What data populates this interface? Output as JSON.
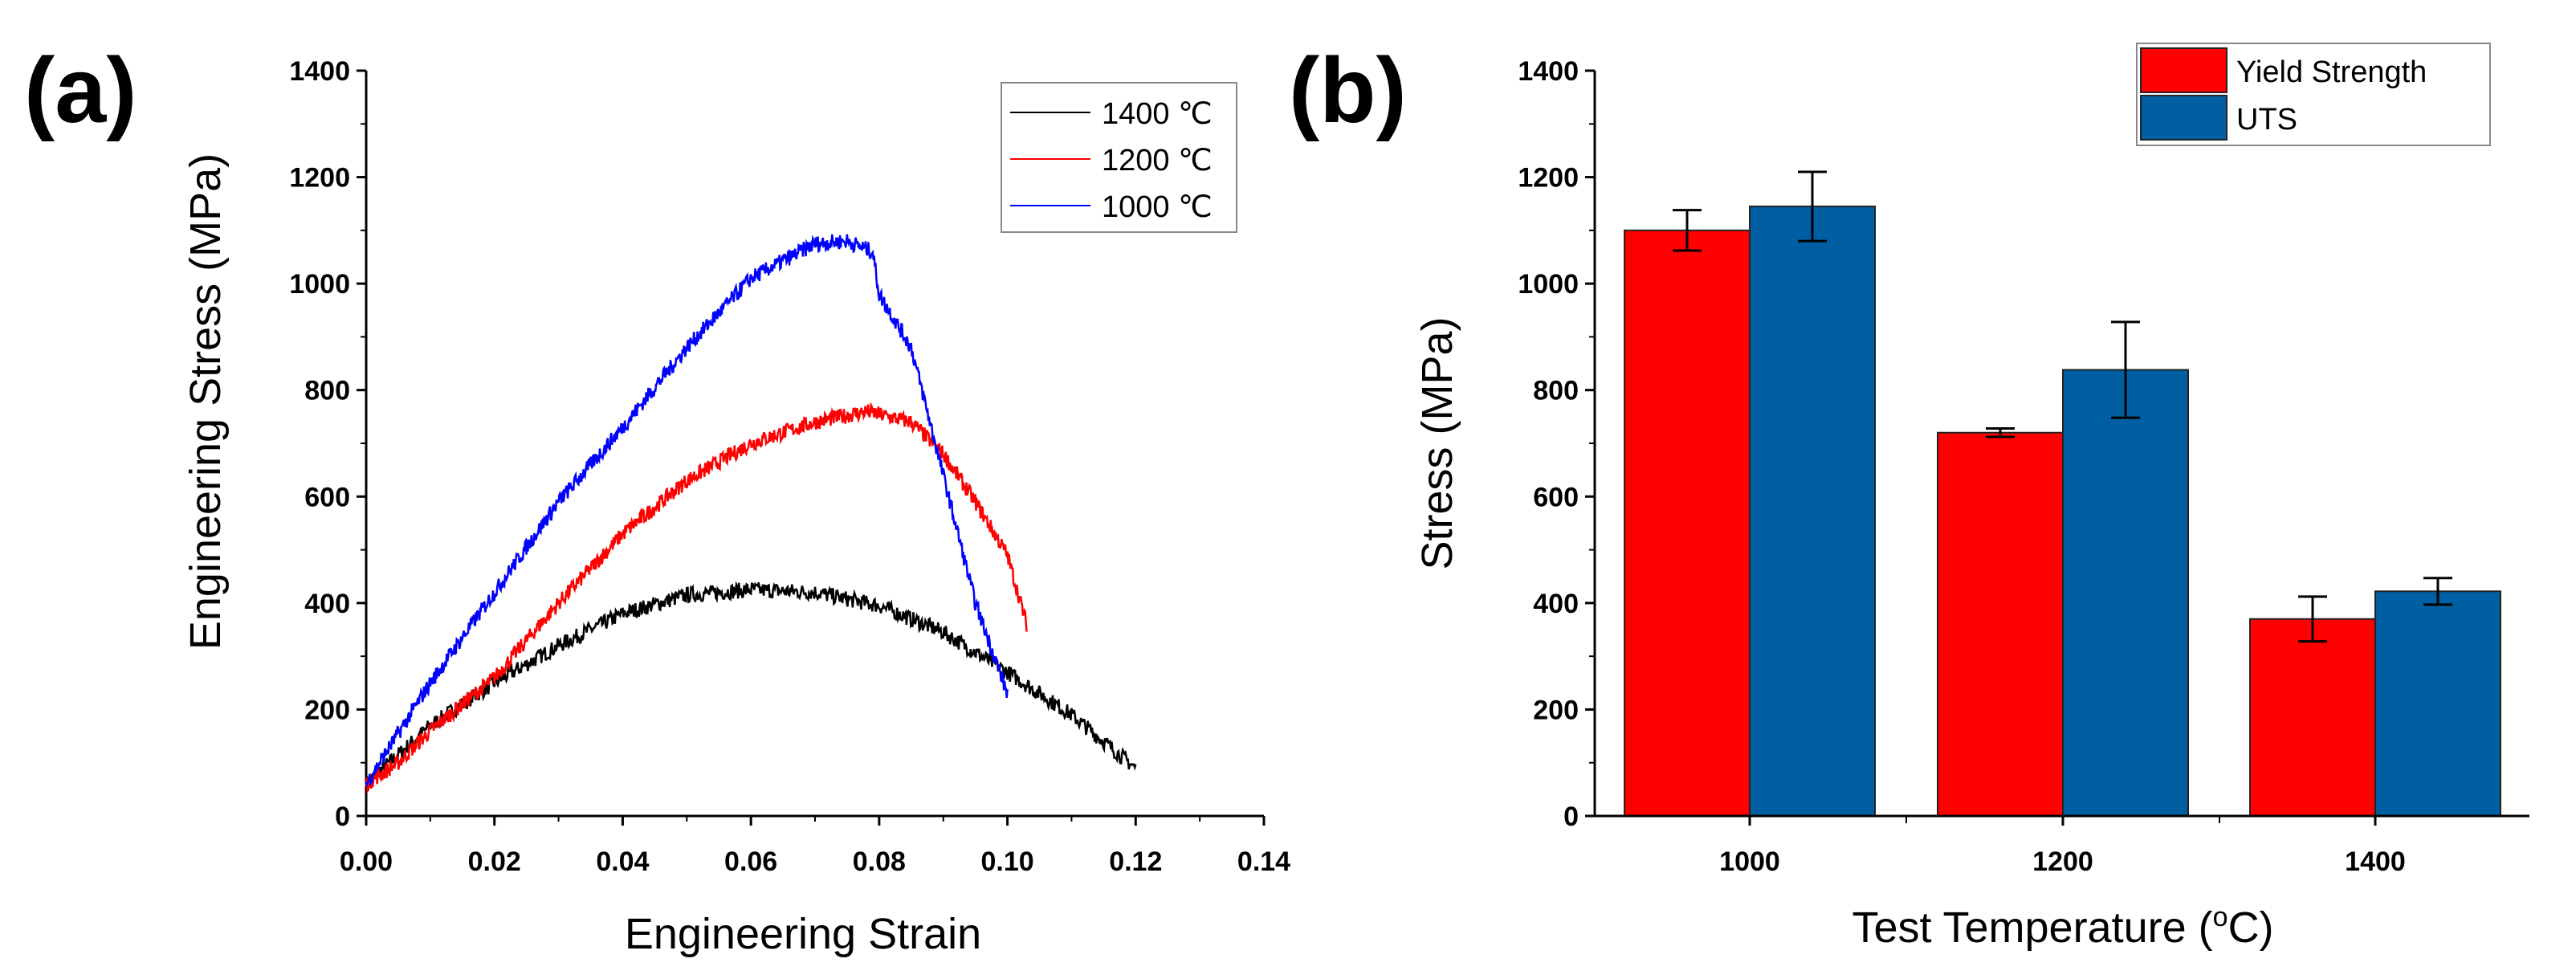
{
  "chart_data": [
    {
      "type": "line",
      "panel_label": "(a)",
      "xlabel": "Engineering Strain",
      "ylabel": "Engineering Stress (MPa)",
      "xlim": [
        0,
        0.14
      ],
      "ylim": [
        0,
        1400
      ],
      "xticks": [
        "0.00",
        "0.02",
        "0.04",
        "0.06",
        "0.08",
        "0.10",
        "0.12",
        "0.14"
      ],
      "yticks": [
        "0",
        "200",
        "400",
        "600",
        "800",
        "1000",
        "1200",
        "1400"
      ],
      "legend_position": "top-right",
      "grid": false,
      "series": [
        {
          "name": "1400 ℃",
          "color": "#000000",
          "x": [
            0,
            0.01,
            0.02,
            0.03,
            0.04,
            0.05,
            0.06,
            0.07,
            0.08,
            0.09,
            0.1,
            0.11,
            0.12
          ],
          "y": [
            60,
            170,
            250,
            320,
            380,
            415,
            425,
            420,
            395,
            345,
            270,
            190,
            90
          ]
        },
        {
          "name": "1200 ℃",
          "color": "#ff0000",
          "x": [
            0,
            0.005,
            0.01,
            0.02,
            0.03,
            0.04,
            0.05,
            0.06,
            0.07,
            0.078,
            0.085,
            0.09,
            0.095,
            0.1,
            0.103
          ],
          "y": [
            60,
            100,
            160,
            260,
            400,
            530,
            630,
            700,
            740,
            760,
            740,
            680,
            590,
            490,
            360
          ]
        },
        {
          "name": "1000 ℃",
          "color": "#0000ff",
          "x": [
            0,
            0.01,
            0.02,
            0.03,
            0.04,
            0.05,
            0.06,
            0.07,
            0.075,
            0.079,
            0.08,
            0.085,
            0.09,
            0.095,
            0.1
          ],
          "y": [
            60,
            250,
            420,
            590,
            730,
            880,
            1010,
            1075,
            1080,
            1060,
            980,
            880,
            640,
            400,
            230
          ]
        }
      ]
    },
    {
      "type": "bar",
      "panel_label": "(b)",
      "xlabel": "Test Temperature (",
      "xlabel_sup": "o",
      "xlabel_end": "C)",
      "ylabel": "Stress (MPa)",
      "ylim": [
        0,
        1400
      ],
      "yticks": [
        "0",
        "200",
        "400",
        "600",
        "800",
        "1000",
        "1200",
        "1400"
      ],
      "categories": [
        "1000",
        "1200",
        "1400"
      ],
      "legend_position": "top-right",
      "grid": false,
      "series": [
        {
          "name": "Yield Strength",
          "color": "#ff0000",
          "values": [
            1100,
            720,
            370
          ],
          "errors": [
            38,
            8,
            42
          ]
        },
        {
          "name": "UTS",
          "color": "#005fa3",
          "values": [
            1145,
            838,
            422
          ],
          "errors": [
            65,
            90,
            25
          ]
        }
      ]
    }
  ]
}
